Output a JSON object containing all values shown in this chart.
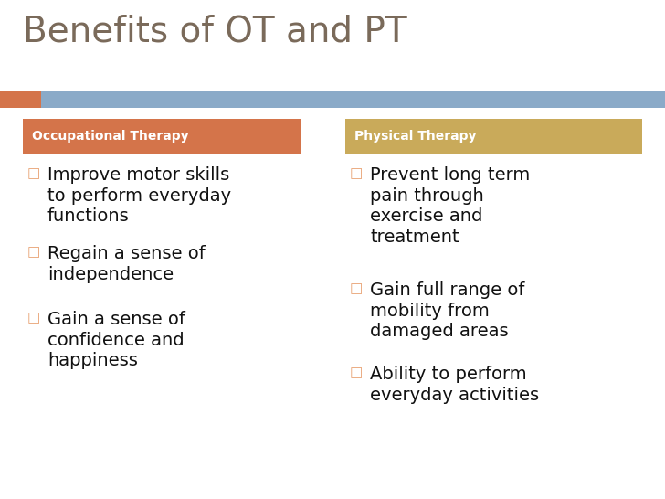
{
  "title": "Benefits of OT and PT",
  "title_color": "#7a6a5a",
  "title_fontsize": 28,
  "background_color": "#ffffff",
  "divider_color_left": "#d4744a",
  "divider_color_right": "#8aaac8",
  "ot_header_bg": "#d4744a",
  "pt_header_bg": "#c9aa5a",
  "ot_header_text": "Occupational Therapy",
  "pt_header_text": "Physical Therapy",
  "header_text_color": "#ffffff",
  "header_fontsize": 10,
  "bullet_color": "#e8a070",
  "bullet_char": "□",
  "bullet_fontsize": 11,
  "item_fontsize": 14,
  "item_color": "#111111",
  "ot_items": [
    "Improve motor skills\nto perform everyday\nfunctions",
    "Regain a sense of\nindependence",
    "Gain a sense of\nconfidence and\nhappiness"
  ],
  "pt_items": [
    "Prevent long term\npain through\nexercise and\ntreatment",
    "Gain full range of\nmobility from\ndamaged areas",
    "Ability to perform\neveryday activities"
  ]
}
